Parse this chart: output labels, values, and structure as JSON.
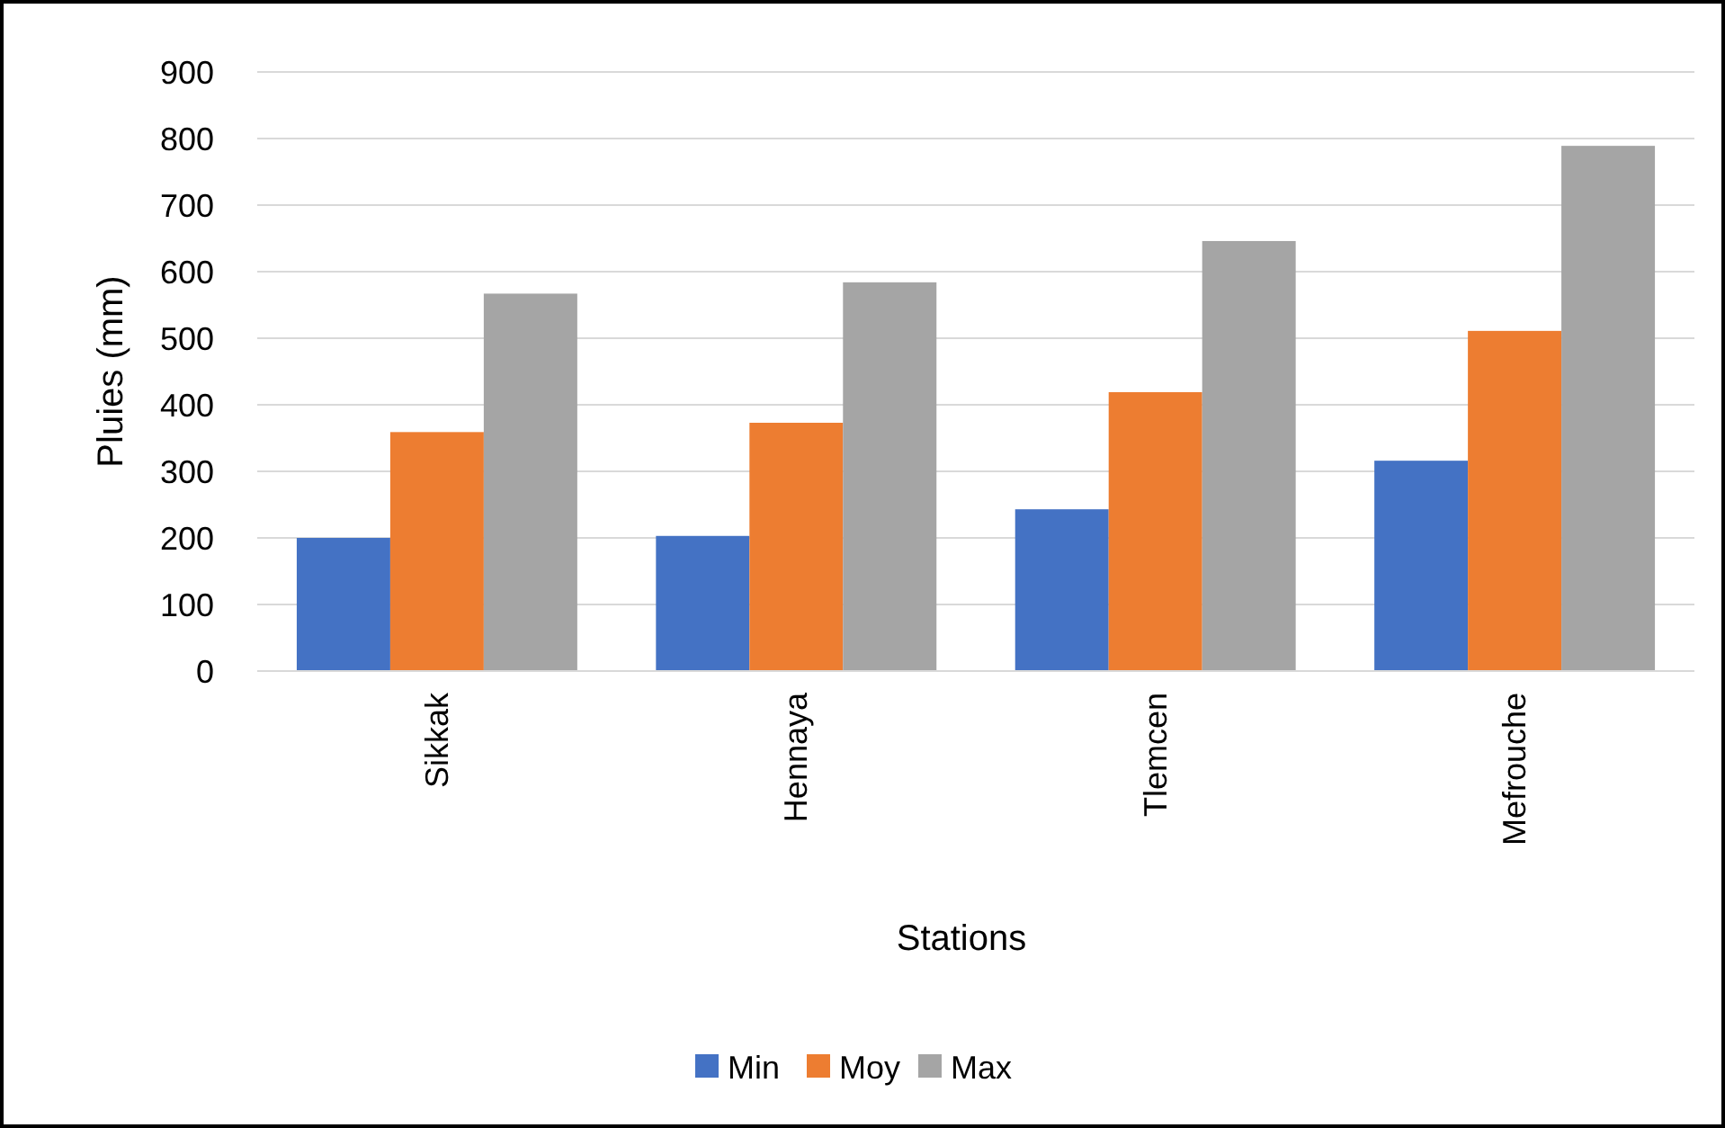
{
  "chart_data": {
    "type": "bar",
    "xlabel": "Stations",
    "ylabel": "Pluies (mm)",
    "categories": [
      "Sikkak",
      "Hennaya",
      "Tlemcen",
      "Mefrouche"
    ],
    "series": [
      {
        "name": "Min",
        "color": "#4472c4",
        "values": [
          200,
          203,
          243,
          316
        ]
      },
      {
        "name": "Moy",
        "color": "#ed7d31",
        "values": [
          359,
          373,
          419,
          511
        ]
      },
      {
        "name": "Max",
        "color": "#a5a5a5",
        "values": [
          567,
          584,
          646,
          789
        ]
      }
    ],
    "ylim": [
      0,
      900
    ],
    "yticks": [
      0,
      100,
      200,
      300,
      400,
      500,
      600,
      700,
      800,
      900
    ],
    "grid": "y",
    "legend": "bottom"
  }
}
